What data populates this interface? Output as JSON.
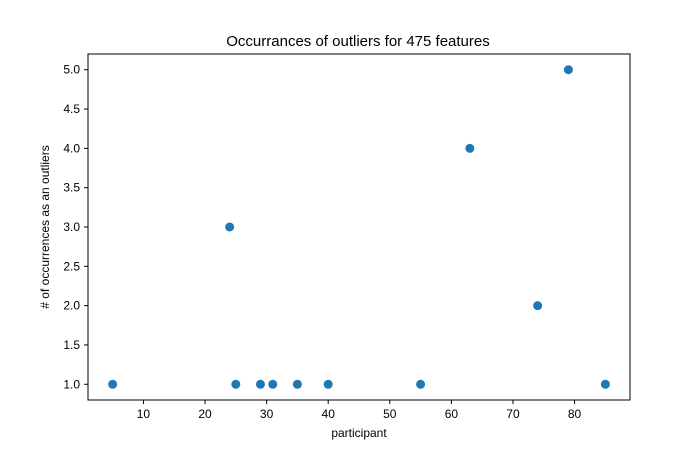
{
  "chart_data": {
    "type": "scatter",
    "title": "Occurrances of outliers for 475 features",
    "xlabel": "participant",
    "ylabel": "# of occurrences as an outliers",
    "xlim": [
      1,
      89
    ],
    "ylim": [
      0.8,
      5.2
    ],
    "x_ticks": [
      10,
      20,
      30,
      40,
      50,
      60,
      70,
      80
    ],
    "x_tick_labels": [
      "10",
      "20",
      "30",
      "40",
      "50",
      "60",
      "70",
      "80"
    ],
    "y_ticks": [
      1.0,
      1.5,
      2.0,
      2.5,
      3.0,
      3.5,
      4.0,
      4.5,
      5.0
    ],
    "y_tick_labels": [
      "1.0",
      "1.5",
      "2.0",
      "2.5",
      "3.0",
      "3.5",
      "4.0",
      "4.5",
      "5.0"
    ],
    "grid": false,
    "marker_color": "#1f77b4",
    "points": [
      {
        "x": 5,
        "y": 1
      },
      {
        "x": 24,
        "y": 3
      },
      {
        "x": 25,
        "y": 1
      },
      {
        "x": 29,
        "y": 1
      },
      {
        "x": 31,
        "y": 1
      },
      {
        "x": 35,
        "y": 1
      },
      {
        "x": 40,
        "y": 1
      },
      {
        "x": 55,
        "y": 1
      },
      {
        "x": 63,
        "y": 4
      },
      {
        "x": 74,
        "y": 2
      },
      {
        "x": 79,
        "y": 5
      },
      {
        "x": 85,
        "y": 1
      }
    ]
  }
}
